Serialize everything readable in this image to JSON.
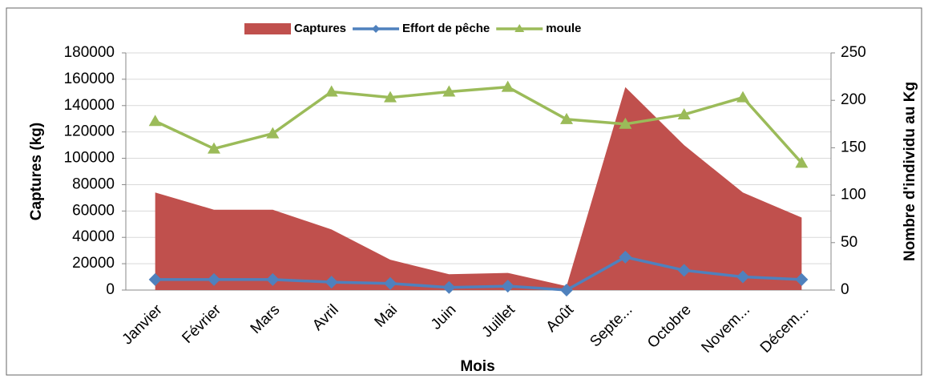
{
  "chart_data": {
    "type": "combo",
    "x_label": "Mois",
    "y_label": "Captures (kg)",
    "y2_label": "Nombre d'individu au Kg",
    "categories": [
      "Janvier",
      "Février",
      "Mars",
      "Avril",
      "Mai",
      "Juin",
      "Juillet",
      "Août",
      "Septe...",
      "Octobre",
      "Novem...",
      "Décem..."
    ],
    "series": [
      {
        "name": "Captures",
        "kind": "area",
        "color": "#c0504d",
        "values": [
          74000,
          61000,
          61000,
          46000,
          23000,
          12000,
          13000,
          3000,
          154000,
          110000,
          74000,
          55000
        ]
      },
      {
        "name": "Effort de pêche",
        "kind": "line",
        "marker": "diamond",
        "color": "#4f81bd",
        "values": [
          8000,
          8000,
          8000,
          6000,
          5000,
          2000,
          3000,
          0,
          25000,
          15000,
          10000,
          8000
        ]
      },
      {
        "name": "moule",
        "kind": "line",
        "marker": "triangle",
        "axis": "y2",
        "color": "#9bbb59",
        "values": [
          178,
          149,
          165,
          209,
          203,
          209,
          214,
          180,
          175,
          185,
          203,
          134
        ]
      }
    ],
    "ylim": [
      0,
      180000
    ],
    "yticks": [
      0,
      20000,
      40000,
      60000,
      80000,
      100000,
      120000,
      140000,
      160000,
      180000
    ],
    "y2lim": [
      0,
      250
    ],
    "y2ticks": [
      0,
      50,
      100,
      150,
      200,
      250
    ],
    "grid": true,
    "legend": "top"
  }
}
